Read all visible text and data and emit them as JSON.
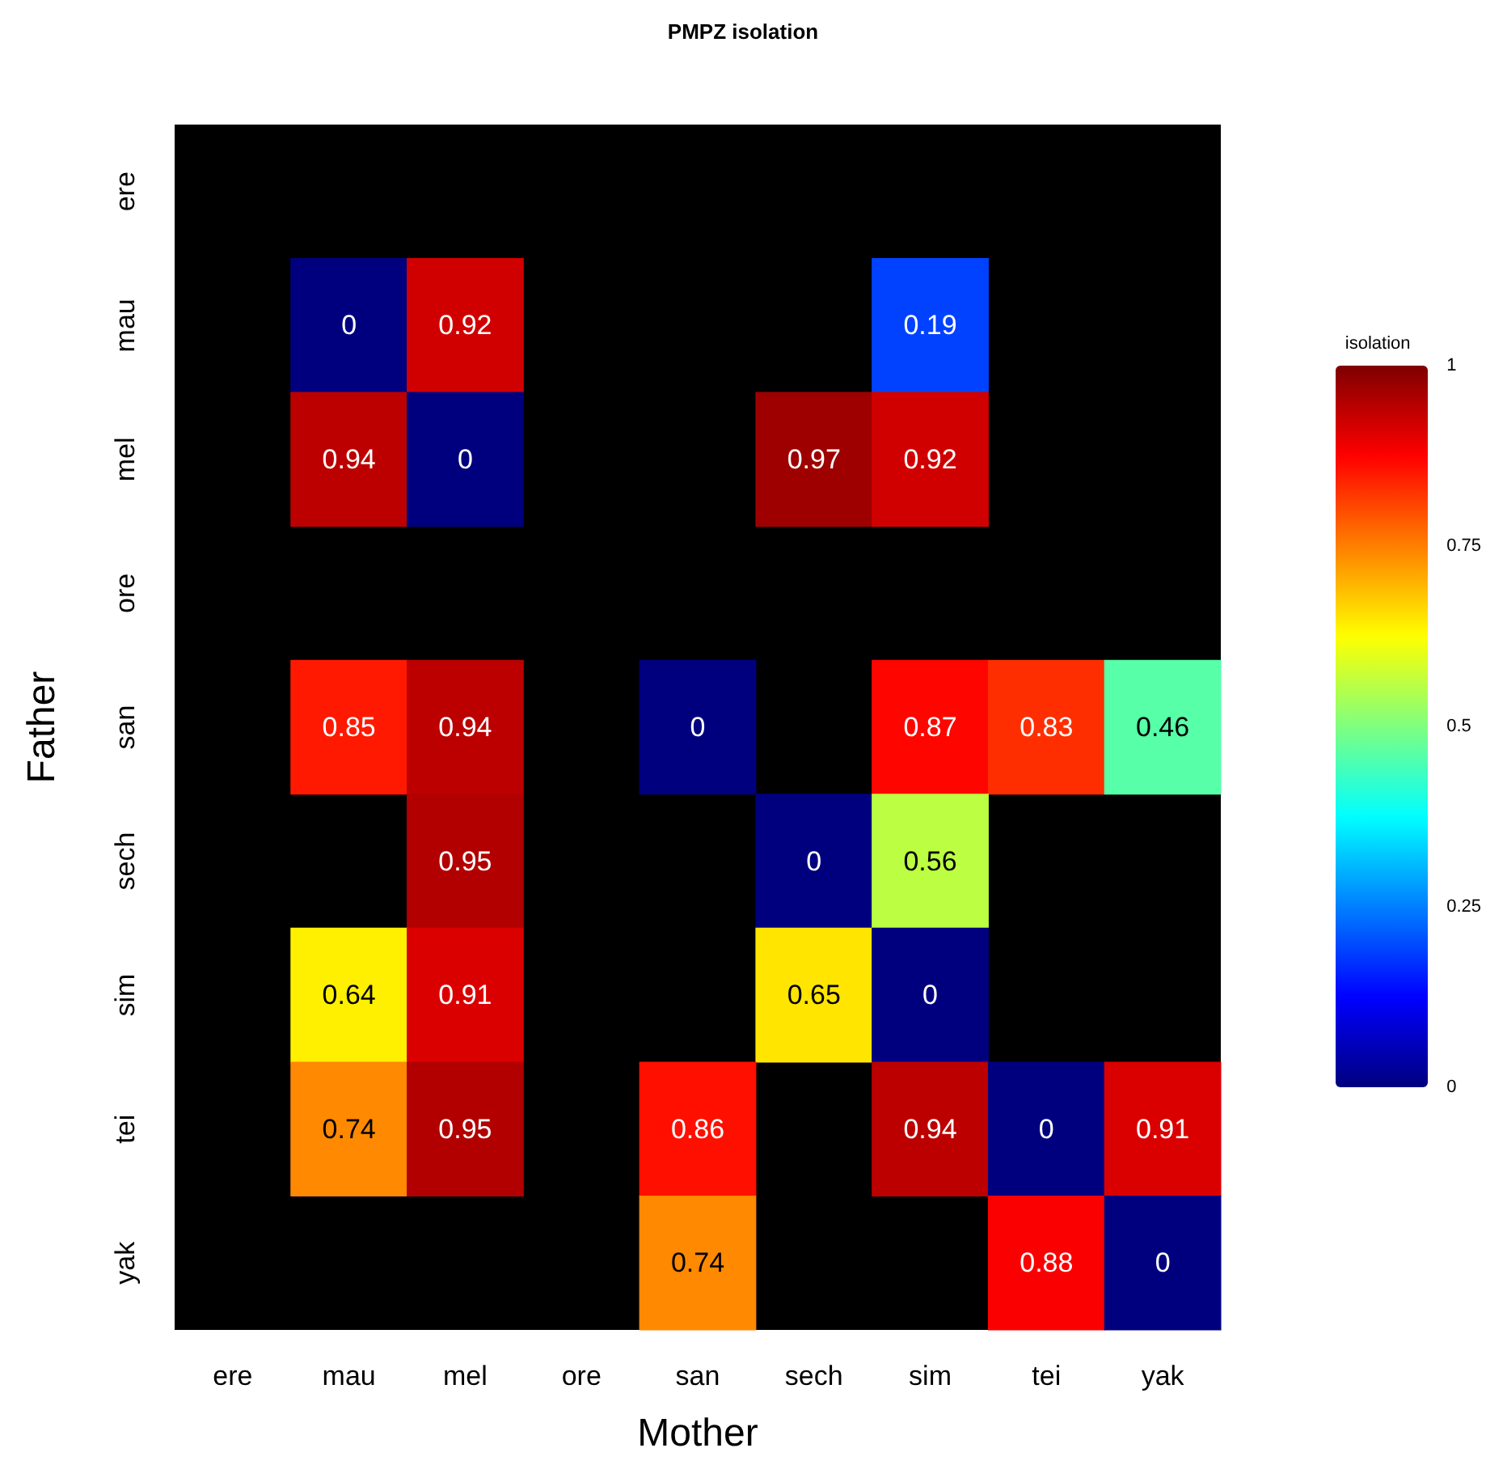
{
  "chart_data": {
    "type": "heatmap",
    "title": "PMPZ isolation",
    "xlabel": "Mother",
    "ylabel": "Father",
    "clabel": "isolation",
    "categories": [
      "ere",
      "mau",
      "mel",
      "ore",
      "san",
      "sech",
      "sim",
      "tei",
      "yak"
    ],
    "y_categories": [
      "ere",
      "mau",
      "mel",
      "ore",
      "san",
      "sech",
      "sim",
      "tei",
      "yak"
    ],
    "cells": [
      [
        null,
        null,
        null,
        null,
        null,
        null,
        null,
        null,
        null
      ],
      [
        null,
        0,
        0.92,
        null,
        null,
        null,
        0.19,
        null,
        null
      ],
      [
        null,
        0.94,
        0,
        null,
        null,
        0.97,
        0.92,
        null,
        null
      ],
      [
        null,
        null,
        null,
        null,
        null,
        null,
        null,
        null,
        null
      ],
      [
        null,
        0.85,
        0.94,
        null,
        0,
        null,
        0.87,
        0.83,
        0.46
      ],
      [
        null,
        null,
        0.95,
        null,
        null,
        0,
        0.56,
        null,
        null
      ],
      [
        null,
        0.64,
        0.91,
        null,
        null,
        0.65,
        0,
        null,
        null
      ],
      [
        null,
        0.74,
        0.95,
        null,
        0.86,
        null,
        0.94,
        0,
        0.91
      ],
      [
        null,
        null,
        null,
        null,
        0.74,
        null,
        null,
        0.88,
        0
      ]
    ],
    "clim": [
      0,
      1
    ],
    "cticks": [
      0,
      0.25,
      0.5,
      0.75,
      1
    ],
    "data_labels": true
  }
}
